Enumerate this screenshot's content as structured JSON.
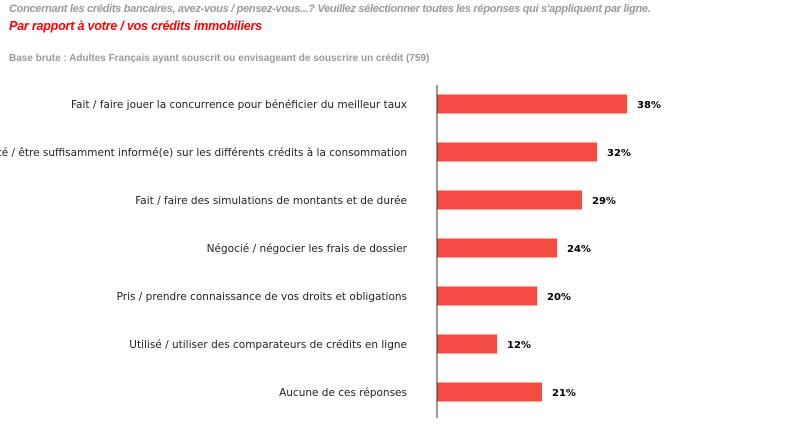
{
  "header": {
    "question": "Concernant les crédits bancaires, avez-vous / pensez-vous...? Veuillez sélectionner toutes les réponses qui s'appliquent par ligne.",
    "subtitle": "Par rapport à votre / vos crédits immobiliers",
    "base": "Base brute : Adultes Français ayant souscrit ou envisageant de souscrire un crédit (759)"
  },
  "chart_data": {
    "type": "bar",
    "orientation": "horizontal",
    "categories": [
      "Fait / faire jouer la concurrence pour bénéficier du meilleur taux",
      "Avoir été / être suffisamment informé(e) sur les différents crédits à la consommation",
      "Fait / faire des simulations de montants et de durée",
      "Négocié / négocier les frais de dossier",
      "Pris / prendre connaissance de vos droits et obligations",
      "Utilisé / utiliser des comparateurs de crédits en ligne",
      "Aucune de ces réponses"
    ],
    "values": [
      38,
      32,
      29,
      24,
      20,
      12,
      21
    ],
    "value_labels": [
      "38%",
      "32%",
      "29%",
      "24%",
      "20%",
      "12%",
      "21%"
    ],
    "unit": "%",
    "bar_color": "#f44b42",
    "grid": false,
    "legend": "none"
  }
}
